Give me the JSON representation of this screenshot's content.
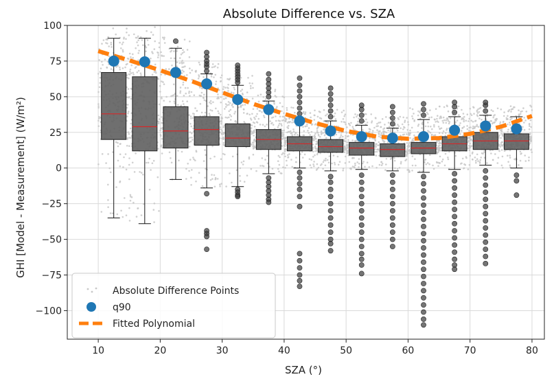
{
  "chart_data": {
    "type": "box",
    "title": "Absolute Difference vs. SZA",
    "xlabel": "SZA (°)",
    "ylabel": "GHI [Model - Measurement] (W/m²)",
    "xlim": [
      5,
      82
    ],
    "ylim": [
      -120,
      100
    ],
    "xticks": [
      10,
      20,
      30,
      40,
      50,
      60,
      70,
      80
    ],
    "yticks": [
      100,
      75,
      50,
      25,
      0,
      -25,
      -50,
      -75,
      -100
    ],
    "ytick_labels": [
      "100",
      "75",
      "50",
      "25",
      "0",
      "−25",
      "−50",
      "−75",
      "−100"
    ],
    "grid": true,
    "legend_position": "lower-left",
    "colors": {
      "points": "#c8c8c8",
      "box_fill": "#5f5f5f",
      "median": "#d62728",
      "q90": "#1f77b4",
      "fit": "#ff7f0e",
      "outlier": "#3a3a3a"
    },
    "legend": [
      {
        "label": "Absolute Difference Points",
        "marker": "point"
      },
      {
        "label": "q90",
        "marker": "circle"
      },
      {
        "label": "Fitted Polynomial",
        "marker": "dash"
      }
    ],
    "boxes": [
      {
        "x": 12.5,
        "whislo": -35,
        "q1": 20,
        "med": 38,
        "q3": 67,
        "whishi": 91,
        "outliers": []
      },
      {
        "x": 17.5,
        "whislo": -39,
        "q1": 12,
        "med": 29,
        "q3": 64,
        "whishi": 91,
        "outliers": []
      },
      {
        "x": 22.5,
        "whislo": -8,
        "q1": 14,
        "med": 26,
        "q3": 43,
        "whishi": 84,
        "outliers": [
          89
        ]
      },
      {
        "x": 27.5,
        "whislo": -14,
        "q1": 16,
        "med": 27,
        "q3": 36,
        "whishi": 66,
        "outliers": [
          -18,
          -44,
          -46,
          -48,
          -57,
          68,
          71,
          73,
          75,
          78,
          81
        ]
      },
      {
        "x": 32.5,
        "whislo": -13,
        "q1": 15,
        "med": 21,
        "q3": 31,
        "whishi": 58,
        "outliers": [
          -15,
          -17,
          -19,
          -20,
          60,
          62,
          64,
          66,
          68,
          70,
          72
        ]
      },
      {
        "x": 37.5,
        "whislo": -4,
        "q1": 13,
        "med": 20,
        "q3": 27,
        "whishi": 47,
        "outliers": [
          -7,
          -10,
          -13,
          -16,
          -19,
          -22,
          -24,
          50,
          53,
          56,
          59,
          62,
          66
        ]
      },
      {
        "x": 42.5,
        "whislo": 0,
        "q1": 12,
        "med": 17,
        "q3": 22,
        "whishi": 35,
        "outliers": [
          -3,
          -7,
          -11,
          -15,
          -20,
          -27,
          -60,
          -65,
          -70,
          -75,
          -79,
          -83,
          38,
          42,
          46,
          50,
          54,
          58,
          63
        ]
      },
      {
        "x": 47.5,
        "whislo": -2,
        "q1": 11,
        "med": 15,
        "q3": 20,
        "whishi": 33,
        "outliers": [
          -6,
          -10,
          -15,
          -20,
          -25,
          -30,
          -35,
          -40,
          -45,
          -50,
          -53,
          -58,
          36,
          40,
          44,
          48,
          52,
          56
        ]
      },
      {
        "x": 52.5,
        "whislo": -1,
        "q1": 9,
        "med": 14,
        "q3": 18,
        "whishi": 30,
        "outliers": [
          -5,
          -10,
          -15,
          -20,
          -25,
          -30,
          -35,
          -40,
          -45,
          -50,
          -55,
          -60,
          -64,
          -68,
          -74,
          33,
          37,
          41,
          44
        ]
      },
      {
        "x": 57.5,
        "whislo": -2,
        "q1": 8,
        "med": 13,
        "q3": 17,
        "whishi": 28,
        "outliers": [
          -5,
          -10,
          -15,
          -20,
          -25,
          -30,
          -35,
          -40,
          -45,
          -50,
          -55,
          31,
          35,
          39,
          43
        ]
      },
      {
        "x": 62.5,
        "whislo": -3,
        "q1": 10,
        "med": 14,
        "q3": 18,
        "whishi": 34,
        "outliers": [
          -6,
          -11,
          -16,
          -21,
          -26,
          -31,
          -36,
          -41,
          -46,
          -51,
          -56,
          -61,
          -66,
          -71,
          -76,
          -81,
          -86,
          -91,
          -96,
          -101,
          -106,
          -110,
          37,
          41,
          45
        ]
      },
      {
        "x": 67.5,
        "whislo": -1,
        "q1": 12,
        "med": 17,
        "q3": 22,
        "whishi": 36,
        "outliers": [
          -4,
          -9,
          -14,
          -19,
          -24,
          -29,
          -34,
          -39,
          -44,
          -49,
          -54,
          -59,
          -64,
          -68,
          -71,
          39,
          43,
          46
        ]
      },
      {
        "x": 72.5,
        "whislo": 2,
        "q1": 13,
        "med": 19,
        "q3": 25,
        "whishi": 37,
        "outliers": [
          -2,
          -7,
          -12,
          -17,
          -22,
          -27,
          -32,
          -37,
          -42,
          -47,
          -52,
          -57,
          -62,
          -67,
          40,
          44,
          46
        ]
      },
      {
        "x": 77.5,
        "whislo": 0,
        "q1": 13,
        "med": 19,
        "q3": 24,
        "whishi": 36,
        "outliers": [
          -5,
          -9,
          -19
        ]
      }
    ],
    "q90": {
      "x": [
        12.5,
        17.5,
        22.5,
        27.5,
        32.5,
        37.5,
        42.5,
        47.5,
        52.5,
        57.5,
        62.5,
        67.5,
        72.5,
        77.5
      ],
      "y": [
        75,
        74.5,
        67,
        59,
        48,
        41,
        33,
        26,
        22,
        21,
        22,
        26.5,
        29.5,
        27.5
      ]
    },
    "fit": {
      "x": [
        10,
        15,
        20,
        25,
        30,
        35,
        40,
        45,
        50,
        55,
        60,
        65,
        70,
        75,
        80
      ],
      "y": [
        82,
        75.5,
        68.5,
        61,
        53,
        45,
        38,
        31.5,
        26,
        22,
        20.5,
        21,
        24,
        29,
        36.5
      ]
    }
  }
}
